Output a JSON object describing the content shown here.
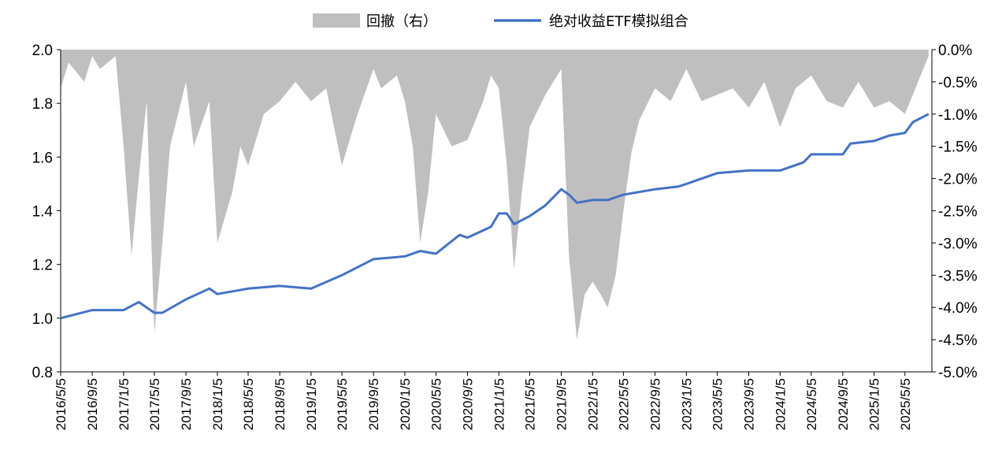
{
  "chart_data": {
    "type": "area+line",
    "legend": [
      {
        "label": "回撤（右）",
        "kind": "area",
        "color": "#bfbfbf"
      },
      {
        "label": "绝对收益ETF模拟组合",
        "kind": "line",
        "color": "#4472c4"
      }
    ],
    "legend_position": "top-center",
    "x_tick_labels": [
      "2016/5/5",
      "2016/9/5",
      "2017/1/5",
      "2017/5/5",
      "2017/9/5",
      "2018/1/5",
      "2018/5/5",
      "2018/9/5",
      "2019/1/5",
      "2019/5/5",
      "2019/9/5",
      "2020/1/5",
      "2020/5/5",
      "2020/9/5",
      "2021/1/5",
      "2021/5/5",
      "2021/9/5",
      "2022/1/5",
      "2022/5/5",
      "2022/9/5",
      "2023/1/5",
      "2023/5/5",
      "2023/9/5",
      "2024/1/5",
      "2024/5/5",
      "2024/9/5",
      "2025/1/5",
      "2025/5/5"
    ],
    "y_left": {
      "min": 0.8,
      "max": 2.0,
      "ticks": [
        "0.8",
        "1.0",
        "1.2",
        "1.4",
        "1.6",
        "1.8",
        "2.0"
      ]
    },
    "y_right": {
      "min": -5.0,
      "max": 0.0,
      "ticks": [
        "-5.0%",
        "-4.5%",
        "-4.0%",
        "-3.5%",
        "-3.0%",
        "-2.5%",
        "-2.0%",
        "-1.5%",
        "-1.0%",
        "-0.5%",
        "0.0%"
      ]
    },
    "series": [
      {
        "name": "绝对收益ETF模拟组合",
        "axis": "left",
        "x": [
          "2016/5/5",
          "2016/9/5",
          "2017/1/5",
          "2017/3/5",
          "2017/5/5",
          "2017/6/5",
          "2017/9/5",
          "2017/12/5",
          "2018/1/5",
          "2018/5/5",
          "2018/9/5",
          "2019/1/5",
          "2019/5/5",
          "2019/9/5",
          "2020/1/5",
          "2020/3/5",
          "2020/5/5",
          "2020/8/5",
          "2020/9/5",
          "2020/12/5",
          "2021/1/5",
          "2021/2/5",
          "2021/3/5",
          "2021/5/5",
          "2021/7/5",
          "2021/9/5",
          "2021/10/5",
          "2021/11/5",
          "2022/1/5",
          "2022/3/5",
          "2022/5/5",
          "2022/9/5",
          "2022/12/5",
          "2023/1/5",
          "2023/5/5",
          "2023/9/5",
          "2024/1/5",
          "2024/4/5",
          "2024/5/5",
          "2024/9/5",
          "2024/10/5",
          "2025/1/5",
          "2025/3/5",
          "2025/5/5",
          "2025/6/5",
          "2025/8/5"
        ],
        "values": [
          1.0,
          1.03,
          1.03,
          1.06,
          1.02,
          1.02,
          1.07,
          1.11,
          1.09,
          1.11,
          1.12,
          1.11,
          1.16,
          1.22,
          1.23,
          1.25,
          1.24,
          1.31,
          1.3,
          1.34,
          1.39,
          1.39,
          1.35,
          1.38,
          1.42,
          1.48,
          1.46,
          1.43,
          1.44,
          1.44,
          1.46,
          1.48,
          1.49,
          1.5,
          1.54,
          1.55,
          1.55,
          1.58,
          1.61,
          1.61,
          1.65,
          1.66,
          1.68,
          1.69,
          1.73,
          1.76
        ]
      },
      {
        "name": "回撤（右）",
        "axis": "right",
        "x": [
          "2016/5/5",
          "2016/6/5",
          "2016/8/5",
          "2016/9/5",
          "2016/10/5",
          "2016/12/5",
          "2017/1/5",
          "2017/2/5",
          "2017/3/5",
          "2017/4/5",
          "2017/5/5",
          "2017/6/5",
          "2017/7/5",
          "2017/9/5",
          "2017/10/5",
          "2017/12/5",
          "2018/1/5",
          "2018/3/5",
          "2018/4/5",
          "2018/5/5",
          "2018/7/5",
          "2018/9/5",
          "2018/11/5",
          "2019/1/5",
          "2019/3/5",
          "2019/5/5",
          "2019/7/5",
          "2019/9/5",
          "2019/10/5",
          "2019/12/5",
          "2020/1/5",
          "2020/2/5",
          "2020/3/5",
          "2020/4/5",
          "2020/5/5",
          "2020/7/5",
          "2020/9/5",
          "2020/11/5",
          "2020/12/5",
          "2021/1/5",
          "2021/2/5",
          "2021/3/5",
          "2021/4/5",
          "2021/5/5",
          "2021/7/5",
          "2021/9/5",
          "2021/10/5",
          "2021/11/5",
          "2021/12/5",
          "2022/1/5",
          "2022/2/5",
          "2022/3/5",
          "2022/4/5",
          "2022/5/5",
          "2022/6/5",
          "2022/7/5",
          "2022/9/5",
          "2022/11/5",
          "2023/1/5",
          "2023/3/5",
          "2023/5/5",
          "2023/7/5",
          "2023/9/5",
          "2023/11/5",
          "2024/1/5",
          "2024/3/5",
          "2024/5/5",
          "2024/7/5",
          "2024/9/5",
          "2024/11/5",
          "2025/1/5",
          "2025/3/5",
          "2025/5/5",
          "2025/7/5",
          "2025/8/5"
        ],
        "values": [
          -0.6,
          -0.2,
          -0.5,
          -0.1,
          -0.3,
          -0.1,
          -1.5,
          -3.2,
          -2.0,
          -0.8,
          -4.4,
          -3.0,
          -1.5,
          -0.5,
          -1.5,
          -0.8,
          -3.0,
          -2.2,
          -1.5,
          -1.8,
          -1.0,
          -0.8,
          -0.5,
          -0.8,
          -0.6,
          -1.8,
          -1.0,
          -0.3,
          -0.6,
          -0.4,
          -0.8,
          -1.5,
          -3.0,
          -2.2,
          -1.0,
          -1.5,
          -1.4,
          -0.8,
          -0.4,
          -0.6,
          -1.8,
          -3.4,
          -2.2,
          -1.2,
          -0.7,
          -0.3,
          -3.2,
          -4.5,
          -3.8,
          -3.6,
          -3.8,
          -4.0,
          -3.5,
          -2.5,
          -1.6,
          -1.1,
          -0.6,
          -0.8,
          -0.3,
          -0.8,
          -0.7,
          -0.6,
          -0.9,
          -0.5,
          -1.2,
          -0.6,
          -0.4,
          -0.8,
          -0.9,
          -0.5,
          -0.9,
          -0.8,
          -1.0,
          -0.4,
          -0.1
        ]
      }
    ]
  }
}
